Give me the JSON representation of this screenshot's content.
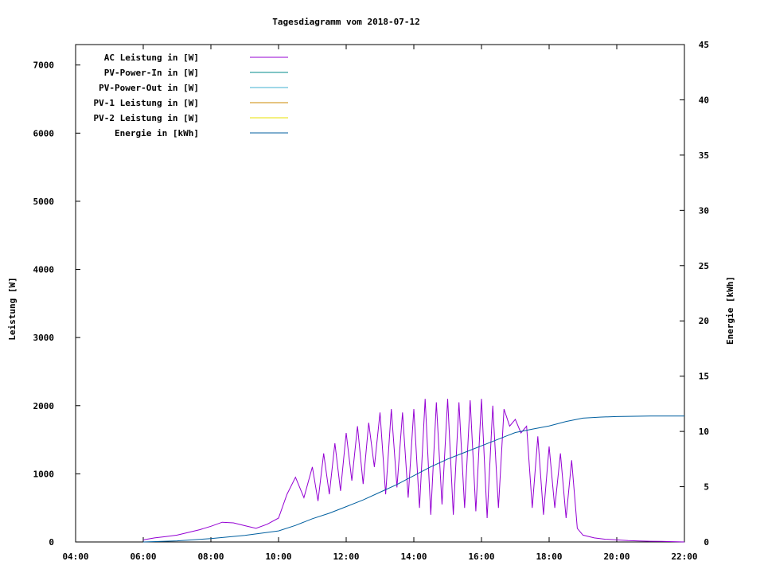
{
  "chart_data": {
    "type": "line",
    "title": "Tagesdiagramm vom 2018-07-12",
    "ylabel": "Leistung [W]",
    "y2label": "Energie [kWh]",
    "xlim": [
      "04:00",
      "22:00"
    ],
    "ylim": [
      0,
      7300
    ],
    "y2lim": [
      0,
      45
    ],
    "x_ticks": [
      "04:00",
      "06:00",
      "08:00",
      "10:00",
      "12:00",
      "14:00",
      "16:00",
      "18:00",
      "20:00",
      "22:00"
    ],
    "y_ticks": [
      "0",
      "1000",
      "2000",
      "3000",
      "4000",
      "5000",
      "6000",
      "7000"
    ],
    "y2_ticks": [
      "0",
      "5",
      "10",
      "15",
      "20",
      "25",
      "30",
      "35",
      "40",
      "45"
    ],
    "grid": false,
    "legend_position": "top-left",
    "series": [
      {
        "name": "AC Leistung in [W]",
        "color": "#9400d3",
        "axis": "left",
        "x": [
          "06:00",
          "06:20",
          "06:40",
          "07:00",
          "07:20",
          "07:40",
          "08:00",
          "08:20",
          "08:40",
          "09:00",
          "09:20",
          "09:40",
          "10:00",
          "10:15",
          "10:30",
          "10:45",
          "11:00",
          "11:10",
          "11:20",
          "11:30",
          "11:40",
          "11:50",
          "12:00",
          "12:10",
          "12:20",
          "12:30",
          "12:40",
          "12:50",
          "13:00",
          "13:10",
          "13:20",
          "13:30",
          "13:40",
          "13:50",
          "14:00",
          "14:10",
          "14:20",
          "14:30",
          "14:40",
          "14:50",
          "15:00",
          "15:10",
          "15:20",
          "15:30",
          "15:40",
          "15:50",
          "16:00",
          "16:10",
          "16:20",
          "16:30",
          "16:40",
          "16:50",
          "17:00",
          "17:10",
          "17:20",
          "17:30",
          "17:40",
          "17:50",
          "18:00",
          "18:10",
          "18:20",
          "18:30",
          "18:40",
          "18:50",
          "19:00",
          "19:20",
          "19:40",
          "20:00",
          "20:20",
          "20:40",
          "21:00",
          "21:20",
          "21:40",
          "22:00"
        ],
        "y": [
          30,
          60,
          80,
          100,
          140,
          180,
          230,
          290,
          280,
          240,
          200,
          260,
          350,
          700,
          950,
          650,
          1100,
          600,
          1300,
          700,
          1450,
          750,
          1600,
          900,
          1700,
          850,
          1750,
          1100,
          1900,
          700,
          1950,
          800,
          1900,
          650,
          1950,
          500,
          2100,
          400,
          2050,
          550,
          2100,
          400,
          2050,
          500,
          2080,
          450,
          2100,
          350,
          2000,
          500,
          1950,
          1700,
          1800,
          1600,
          1700,
          500,
          1550,
          400,
          1400,
          500,
          1300,
          350,
          1200,
          200,
          100,
          60,
          40,
          30,
          20,
          15,
          10,
          8,
          5,
          0
        ]
      },
      {
        "name": "PV-Power-In in [W]",
        "color": "#008b8b",
        "axis": "left"
      },
      {
        "name": "PV-Power-Out in [W]",
        "color": "#40b0d0",
        "axis": "left"
      },
      {
        "name": "PV-1 Leistung in [W]",
        "color": "#cc8800",
        "axis": "left"
      },
      {
        "name": "PV-2 Leistung in [W]",
        "color": "#e8e000",
        "axis": "left"
      },
      {
        "name": "Energie in [kWh]",
        "color": "#005f9f",
        "axis": "right",
        "x": [
          "06:00",
          "07:00",
          "08:00",
          "09:00",
          "10:00",
          "10:30",
          "11:00",
          "11:30",
          "12:00",
          "12:30",
          "13:00",
          "13:30",
          "14:00",
          "14:30",
          "15:00",
          "15:30",
          "16:00",
          "16:30",
          "17:00",
          "17:30",
          "18:00",
          "18:30",
          "19:00",
          "19:30",
          "20:00",
          "21:00",
          "22:00"
        ],
        "y": [
          0.0,
          0.1,
          0.3,
          0.6,
          1.0,
          1.5,
          2.1,
          2.6,
          3.2,
          3.8,
          4.5,
          5.2,
          6.0,
          6.8,
          7.5,
          8.1,
          8.7,
          9.3,
          9.9,
          10.2,
          10.5,
          10.9,
          11.2,
          11.3,
          11.35,
          11.4,
          11.4
        ]
      }
    ]
  }
}
